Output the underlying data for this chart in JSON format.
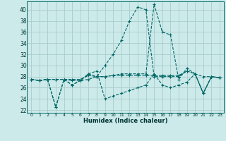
{
  "xlabel": "Humidex (Indice chaleur)",
  "background_color": "#cceaea",
  "grid_color": "#aacccc",
  "line_color": "#006666",
  "xlim": [
    -0.5,
    23.5
  ],
  "ylim": [
    21.5,
    41.5
  ],
  "xticks": [
    0,
    1,
    2,
    3,
    4,
    5,
    6,
    7,
    8,
    9,
    10,
    11,
    12,
    13,
    14,
    15,
    16,
    17,
    18,
    19,
    20,
    21,
    22,
    23
  ],
  "yticks": [
    22,
    24,
    26,
    28,
    30,
    32,
    34,
    36,
    38,
    40
  ],
  "series": [
    [
      27.5,
      27.3,
      27.5,
      27.5,
      27.5,
      27.5,
      27.5,
      28.2,
      28.0,
      28.0,
      28.2,
      28.2,
      28.2,
      28.2,
      28.2,
      28.2,
      28.2,
      28.2,
      28.2,
      29.0,
      28.5,
      28.0,
      28.0,
      27.8
    ],
    [
      27.5,
      27.3,
      27.5,
      27.5,
      27.5,
      27.3,
      27.3,
      27.5,
      28.0,
      30.0,
      32.0,
      34.5,
      38.0,
      40.5,
      40.0,
      28.0,
      28.0,
      28.0,
      28.0,
      29.0,
      28.5,
      25.0,
      28.0,
      27.8
    ],
    [
      27.5,
      27.3,
      27.5,
      22.5,
      27.5,
      26.5,
      27.3,
      28.5,
      29.0,
      24.0,
      24.5,
      25.0,
      25.5,
      26.0,
      26.5,
      28.5,
      26.5,
      26.0,
      26.5,
      27.0,
      28.5,
      25.0,
      28.0,
      27.8
    ],
    [
      27.5,
      27.3,
      27.5,
      22.5,
      27.5,
      26.5,
      27.3,
      28.5,
      28.0,
      28.0,
      28.2,
      28.5,
      28.5,
      28.5,
      28.5,
      41.0,
      36.0,
      35.5,
      27.5,
      29.5,
      28.5,
      25.0,
      28.0,
      27.8
    ]
  ]
}
